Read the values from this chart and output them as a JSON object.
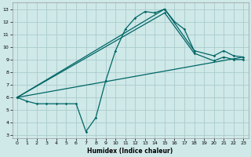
{
  "xlabel": "Humidex (Indice chaleur)",
  "xlim": [
    -0.5,
    23.5
  ],
  "ylim": [
    2.8,
    13.5
  ],
  "yticks": [
    3,
    4,
    5,
    6,
    7,
    8,
    9,
    10,
    11,
    12,
    13
  ],
  "xticks": [
    0,
    1,
    2,
    3,
    4,
    5,
    6,
    7,
    8,
    9,
    10,
    11,
    12,
    13,
    14,
    15,
    16,
    17,
    18,
    19,
    20,
    21,
    22,
    23
  ],
  "bg_color": "#cfe8e8",
  "grid_color": "#aacccc",
  "line_color": "#006666",
  "line1_x": [
    0,
    1,
    2,
    3,
    4,
    5,
    6,
    7,
    8,
    9,
    10,
    11,
    12,
    13,
    14,
    15,
    16,
    17,
    18
  ],
  "line1_y": [
    6.0,
    5.7,
    5.5,
    5.5,
    5.5,
    5.5,
    5.5,
    3.3,
    4.4,
    7.3,
    9.7,
    11.4,
    12.3,
    12.8,
    12.7,
    13.0,
    12.0,
    11.4,
    9.7
  ],
  "line2_x": [
    0,
    15,
    18,
    20,
    21,
    22,
    23
  ],
  "line2_y": [
    6.0,
    13.0,
    9.7,
    9.3,
    9.7,
    9.3,
    9.2
  ],
  "line3_x": [
    0,
    23
  ],
  "line3_y": [
    6.0,
    9.2
  ],
  "line4_x": [
    0,
    15,
    18,
    20,
    21,
    22,
    23
  ],
  "line4_y": [
    6.0,
    12.7,
    9.5,
    8.9,
    9.2,
    9.0,
    9.0
  ]
}
